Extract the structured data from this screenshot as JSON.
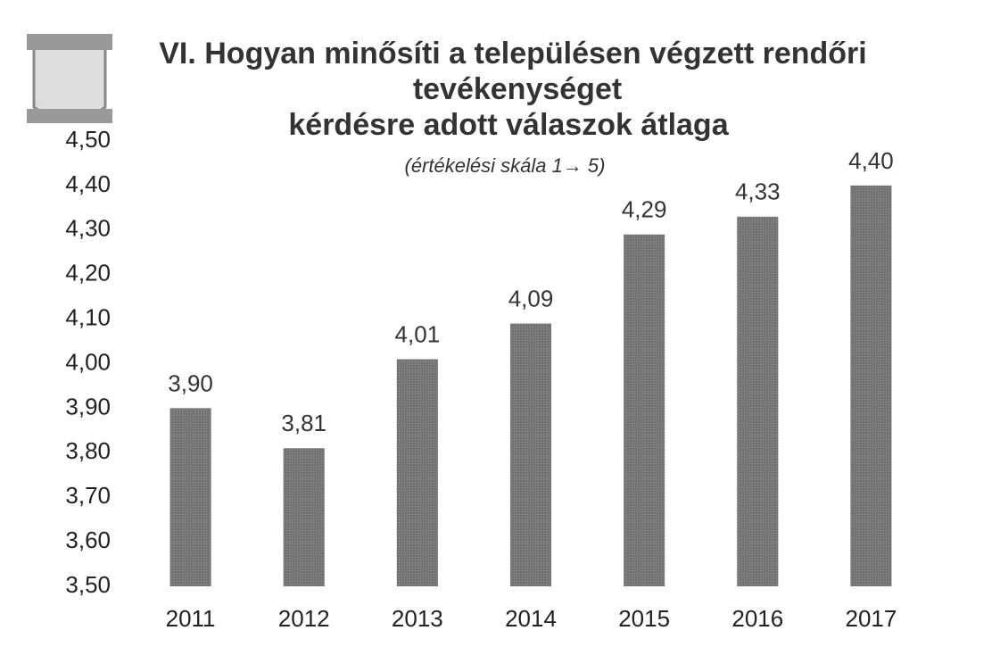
{
  "chart_data": {
    "type": "bar",
    "title": [
      "VI. Hogyan minősíti a településen végzett rendőri",
      "tevékenységet",
      "kérdésre adott válaszok átlaga"
    ],
    "subtitle": "(értékelési skála 1→ 5)",
    "categories": [
      "2011",
      "2012",
      "2013",
      "2014",
      "2015",
      "2016",
      "2017"
    ],
    "values": [
      3.9,
      3.81,
      4.01,
      4.09,
      4.29,
      4.33,
      4.4
    ],
    "value_labels": [
      "3,90",
      "3,81",
      "4,01",
      "4,09",
      "4,29",
      "4,33",
      "4,40"
    ],
    "color": "#6e6e6e",
    "ylim": [
      3.5,
      4.5
    ],
    "yticks": [
      {
        "value": 3.5,
        "label": "3,50"
      },
      {
        "value": 3.6,
        "label": "3,60"
      },
      {
        "value": 3.7,
        "label": "3,70"
      },
      {
        "value": 3.8,
        "label": "3,80"
      },
      {
        "value": 3.9,
        "label": "3,90"
      },
      {
        "value": 4.0,
        "label": "4,00"
      },
      {
        "value": 4.1,
        "label": "4,10"
      },
      {
        "value": 4.2,
        "label": "4,20"
      },
      {
        "value": 4.3,
        "label": "4,30"
      },
      {
        "value": 4.4,
        "label": "4,40"
      },
      {
        "value": 4.5,
        "label": "4,50"
      }
    ],
    "grid": false
  }
}
